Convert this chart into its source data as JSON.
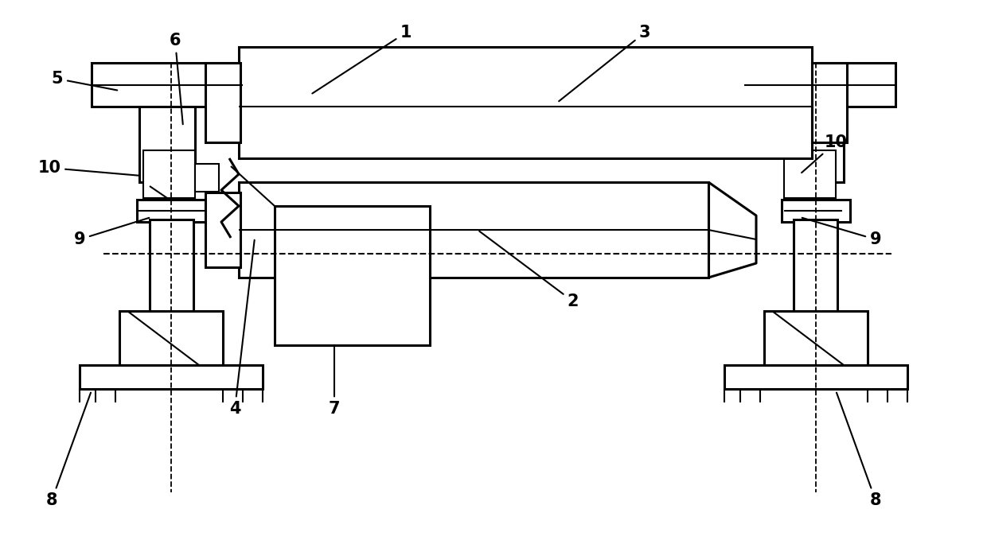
{
  "background_color": "#ffffff",
  "line_color": "#000000",
  "lw_thin": 1.5,
  "lw_thick": 2.2,
  "label_fontsize": 15,
  "label_fontweight": "bold"
}
